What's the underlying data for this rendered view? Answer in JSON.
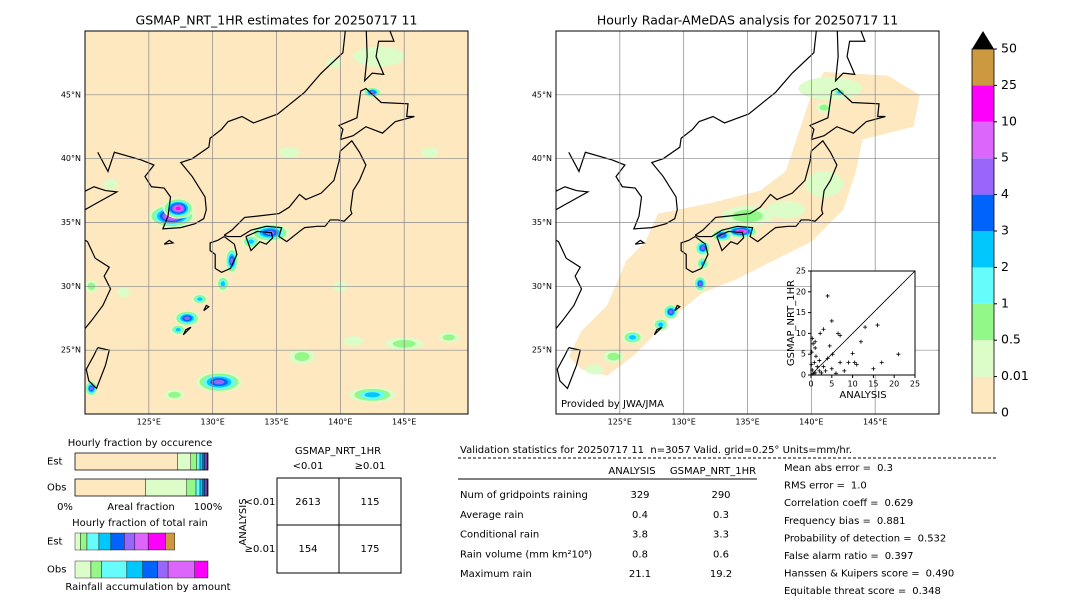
{
  "maps": [
    {
      "title": "GSMAP_NRT_1HR estimates for 20250717 11",
      "xlim": [
        120,
        150
      ],
      "ylim": [
        20,
        50
      ],
      "xticks": [
        {
          "value": 125,
          "label": "125°E"
        },
        {
          "value": 130,
          "label": "130°E"
        },
        {
          "value": 135,
          "label": "135°E"
        },
        {
          "value": 140,
          "label": "140°E"
        },
        {
          "value": 145,
          "label": "145°E"
        }
      ],
      "yticks": [
        {
          "value": 25,
          "label": "25°N"
        },
        {
          "value": 30,
          "label": "30°N"
        },
        {
          "value": 35,
          "label": "35°N"
        },
        {
          "value": 40,
          "label": "40°N"
        },
        {
          "value": 45,
          "label": "45°N"
        }
      ]
    },
    {
      "title": "Hourly Radar-AMeDAS analysis for 20250717 11",
      "credit": "Provided by JWA/JMA",
      "xlim": [
        120,
        150
      ],
      "ylim": [
        20,
        50
      ],
      "xticks": [
        {
          "value": 125,
          "label": "125°E"
        },
        {
          "value": 130,
          "label": "130°E"
        },
        {
          "value": 135,
          "label": "135°E"
        },
        {
          "value": 140,
          "label": "140°E"
        },
        {
          "value": 145,
          "label": "145°E"
        }
      ],
      "yticks": [
        {
          "value": 25,
          "label": "25°N"
        },
        {
          "value": 30,
          "label": "30°N"
        },
        {
          "value": 35,
          "label": "35°N"
        },
        {
          "value": 40,
          "label": "40°N"
        },
        {
          "value": 45,
          "label": "45°N"
        }
      ]
    }
  ],
  "colorbar": {
    "bounds": [
      0,
      0.01,
      0.5,
      1,
      2,
      3,
      4,
      5,
      10,
      25,
      50
    ],
    "colors": [
      "#fde8c0",
      "#dcfcc8",
      "#94f888",
      "#66fcfc",
      "#00c8fc",
      "#0064fc",
      "#9966fc",
      "#dc66fc",
      "#fc00fc",
      "#cc9940"
    ],
    "extend_color": "#000000"
  },
  "scatter": {
    "type": "scatter",
    "xlabel": "ANALYSIS",
    "ylabel": "GSMAP_NRT_1HR",
    "xlim": [
      0,
      25
    ],
    "ylim": [
      0,
      25
    ],
    "xticks": [
      0,
      5,
      10,
      15,
      20,
      25
    ],
    "yticks": [
      0,
      5,
      10,
      15,
      20,
      25
    ],
    "x": [
      0.5,
      1,
      0.3,
      1.5,
      2,
      0.8,
      1.2,
      2.5,
      3,
      0.2,
      1,
      2,
      0.5,
      3.5,
      4,
      0.3,
      5,
      6,
      5.2,
      2.2,
      3,
      5,
      6.5,
      7,
      8,
      9,
      10,
      10.5,
      12,
      13,
      16,
      15,
      17,
      21,
      4,
      1,
      7,
      11,
      4.5,
      0.1
    ],
    "y": [
      0.3,
      0.5,
      1.2,
      2,
      1,
      3,
      4.5,
      0.5,
      2,
      5.5,
      6.5,
      3.5,
      7.5,
      1,
      4,
      8.8,
      1.5,
      0.4,
      5,
      10,
      11,
      13,
      10,
      9.5,
      1,
      3,
      5.2,
      3,
      8,
      11.5,
      12,
      1.5,
      3,
      5,
      19,
      8,
      3,
      2.5,
      7,
      2.5
    ]
  },
  "occurrence": {
    "type": "bar",
    "title": "Hourly fraction by occurence",
    "categories": [
      "Est",
      "Obs"
    ],
    "xlabel": "Areal fraction",
    "xticks": [
      {
        "value": 0,
        "label": "0%"
      },
      {
        "value": 100,
        "label": "100%"
      }
    ],
    "series": [
      [
        77,
        10,
        4.5,
        2.5,
        2,
        1.5,
        1,
        0.8,
        0.5,
        0.2
      ],
      [
        53,
        31,
        7,
        3,
        2,
        1.5,
        1,
        0.8,
        0.5,
        0.2
      ]
    ]
  },
  "total_rain": {
    "type": "bar",
    "title": "Hourly fraction of total rain",
    "categories": [
      "Est",
      "Obs"
    ],
    "xlabel": "Rainfall accumulation by amount",
    "series": [
      [
        4,
        5,
        9,
        9,
        10,
        8,
        10,
        13,
        7
      ],
      [
        12,
        8,
        19,
        12,
        11,
        8,
        20,
        10,
        0
      ]
    ]
  },
  "contingency": {
    "col_header": "GSMAP_NRT_1HR",
    "col_labels": [
      "<0.01",
      "≥0.01"
    ],
    "row_header": "ANALYSIS",
    "row_labels": [
      "<0.01",
      "≥0.01"
    ],
    "cells": [
      [
        2613,
        115
      ],
      [
        154,
        175
      ]
    ]
  },
  "validation": {
    "title": "Validation statistics for 20250717 11  n=3057 Valid. grid=0.25° Units=mm/hr.",
    "columns": [
      "ANALYSIS",
      "GSMAP_NRT_1HR"
    ],
    "rows": [
      {
        "label": "Num of gridpoints raining",
        "values": [
          329,
          290
        ]
      },
      {
        "label": "Average rain",
        "values": [
          0.4,
          0.3
        ]
      },
      {
        "label": "Conditional rain",
        "values": [
          3.8,
          3.3
        ]
      },
      {
        "label": "Rain volume (mm km²10⁶)",
        "values": [
          0.8,
          0.6
        ]
      },
      {
        "label": "Maximum rain",
        "values": [
          21.1,
          19.2
        ]
      }
    ]
  },
  "scores": [
    {
      "label": "Mean abs error =",
      "value": 0.3
    },
    {
      "label": "RMS error =",
      "value": {
        "value": 1,
        "label": "1.0"
      }
    },
    {
      "label": "Correlation coeff =",
      "value": 0.629
    },
    {
      "label": "Frequency bias =",
      "value": 0.881
    },
    {
      "label": "Probability of detection =",
      "value": 0.532
    },
    {
      "label": "False alarm ratio =",
      "value": 0.397
    },
    {
      "label": "Hanssen & Kuipers score =",
      "value": {
        "value": 0.49,
        "label": "0.490"
      }
    },
    {
      "label": "Equitable threat score =",
      "value": 0.348
    }
  ]
}
